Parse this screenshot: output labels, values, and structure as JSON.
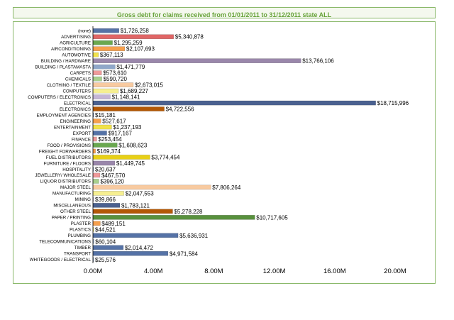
{
  "chart_data": {
    "type": "bar",
    "orientation": "horizontal",
    "title": "Gross debt for claims received from 01/01/2011 to 31/12/2011 state ALL",
    "xlabel": "",
    "ylabel": "",
    "xlim": [
      0,
      20000000
    ],
    "x_ticks": [
      "0.00M",
      "4.00M",
      "8.00M",
      "12.00M",
      "16.00M",
      "20.00M"
    ],
    "grid": false,
    "categories": [
      "(none)",
      "ADVERTISING",
      "AGRICULTURE",
      "AIRCONDITIONING",
      "AUTOMOTIVE",
      "BUILDING / HARDWARE",
      "BUILDING / PLASTAMASTA",
      "CARPETS",
      "CHEMICALS",
      "CLOTHING / TEXTILE",
      "COMPUTERS",
      "COMPUTERS / ELECTRONICS",
      "ELECTRICAL",
      "ELECTRONICS",
      "EMPLOYMENT AGENCIES",
      "ENGINEERING",
      "ENTERTAINMENT",
      "EXPORT",
      "FINANCE",
      "FOOD / PROVISIONS",
      "FREIGHT FORWARDERS",
      "FUEL DISTRIBUTORS",
      "FURNITURE / FLOORS",
      "HOSPITALITY",
      "JEWELLERY/ WHOLESALE",
      "LIQUOR DISTRIBUTORS",
      "MAJOR STEEL",
      "MANUFACTURING",
      "MINING",
      "MISCELLANEOUS",
      "OTHER STEEL",
      "PAPER / PRINTING",
      "PLASTER",
      "PLASTICS",
      "PLUMBING",
      "TELECOMMUNICATIONS",
      "TIMBER",
      "TRANSPORT",
      "WHITEGOODS / ELECTRICAL"
    ],
    "values": [
      1726258,
      5340878,
      1295259,
      2107693,
      367113,
      13766106,
      1471779,
      573610,
      590720,
      2673015,
      1689227,
      1148141,
      18715996,
      4722556,
      15181,
      527617,
      1237193,
      917167,
      253454,
      1608623,
      169374,
      3774454,
      1449745,
      20637,
      467570,
      396120,
      7806264,
      2047553,
      39866,
      1783121,
      5278228,
      10717605,
      489151,
      44521,
      5636931,
      60104,
      2014472,
      4971584,
      25576
    ],
    "value_labels": [
      "$1,726,258",
      "$5,340,878",
      "$1,295,259",
      "$2,107,693",
      "$367,113",
      "$13,766,106",
      "$1,471,779",
      "$573,610",
      "$590,720",
      "$2,673,015",
      "$1,689,227",
      "$1,148,141",
      "$18,715,996",
      "$4,722,556",
      "$15,181",
      "$527,617",
      "$1,237,193",
      "$917,167",
      "$253,454",
      "$1,608,623",
      "$169,374",
      "$3,774,454",
      "$1,449,745",
      "$20,637",
      "$467,570",
      "$396,120",
      "$7,806,264",
      "$2,047,553",
      "$39,866",
      "$1,783,121",
      "$5,278,228",
      "$10,717,605",
      "$489,151",
      "$44,521",
      "$5,636,931",
      "$60,104",
      "$2,014,472",
      "$4,971,584",
      "$25,576"
    ],
    "colors": [
      "#5572a6",
      "#e06666",
      "#6aa84f",
      "#f6a04d",
      "#f1e24a",
      "#9a87ab",
      "#8fa7c9",
      "#ef9a9a",
      "#a8d08d",
      "#f8caa0",
      "#f6ef91",
      "#c5b5d6",
      "#4b6190",
      "#b35806",
      "#5572a6",
      "#f6a04d",
      "#f1e24a",
      "#5572a6",
      "#ef9a9a",
      "#6aa84f",
      "#f6a04d",
      "#e8d016",
      "#9a87ab",
      "#8fa7c9",
      "#ef9a9a",
      "#a8d08d",
      "#f8caa0",
      "#f6ef91",
      "#c5b5d6",
      "#4b6190",
      "#b35806",
      "#58913d",
      "#f6a04d",
      "#f1e24a",
      "#5572a6",
      "#8fa7c9",
      "#5572a6",
      "#5572a6",
      "#8fa7c9"
    ],
    "frame_color": "#8ab86a",
    "title_color": "#67a33a"
  }
}
